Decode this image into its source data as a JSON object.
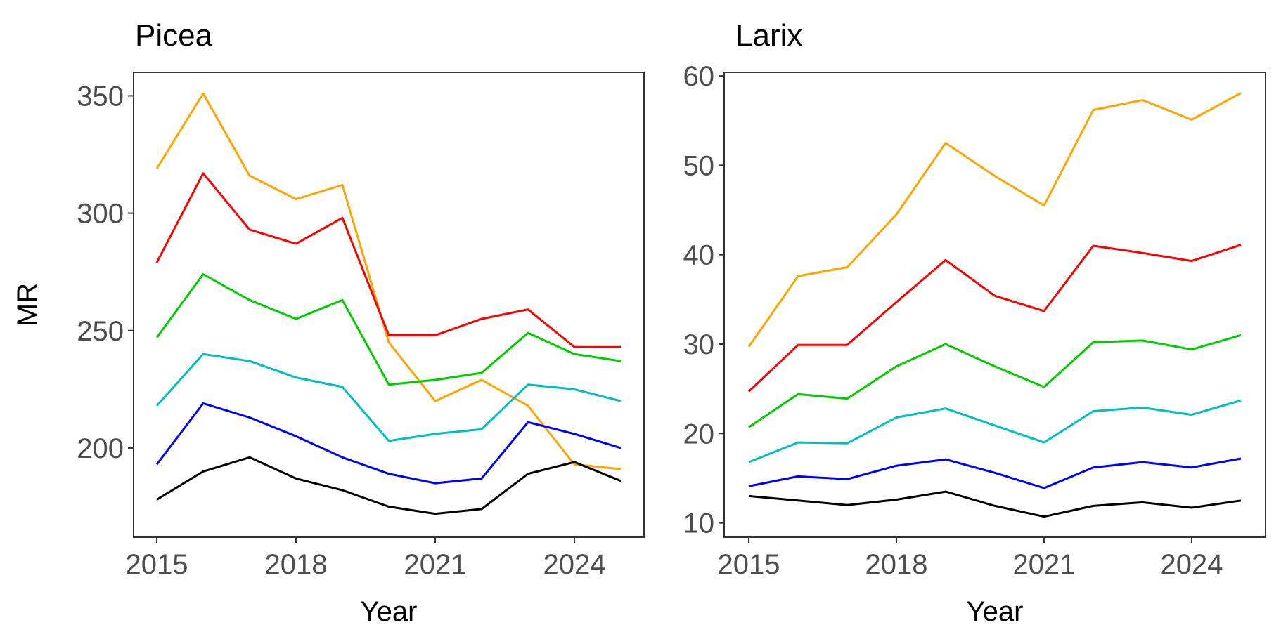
{
  "chart_data": [
    {
      "type": "line",
      "title": "Picea",
      "xlabel": "Year",
      "ylabel": "MR",
      "x": [
        2015,
        2016,
        2017,
        2018,
        2019,
        2020,
        2021,
        2022,
        2023,
        2024,
        2025
      ],
      "xlim": [
        2014.5,
        2025.5
      ],
      "ylim": [
        162,
        360
      ],
      "xticks": [
        2015,
        2018,
        2021,
        2024
      ],
      "yticks": [
        200,
        250,
        300,
        350
      ],
      "grid": false,
      "legend": "none",
      "series": [
        {
          "color": "#FFA500",
          "values": [
            319,
            351,
            316,
            306,
            312,
            245,
            220,
            229,
            218,
            193,
            191
          ]
        },
        {
          "color": "#FF0000",
          "values": [
            279,
            317,
            293,
            287,
            298,
            248,
            248,
            255,
            259,
            243,
            243
          ]
        },
        {
          "color": "#00CD00",
          "values": [
            247,
            274,
            263,
            255,
            263,
            227,
            229,
            232,
            249,
            240,
            237
          ]
        },
        {
          "color": "#00BFC4",
          "values": [
            218,
            240,
            237,
            230,
            226,
            203,
            206,
            208,
            227,
            225,
            220
          ]
        },
        {
          "color": "#0000FF",
          "values": [
            193,
            219,
            213,
            205,
            196,
            189,
            185,
            187,
            211,
            206,
            200
          ]
        },
        {
          "color": "#000000",
          "values": [
            178,
            190,
            196,
            187,
            182,
            175,
            172,
            174,
            189,
            194,
            186
          ]
        }
      ]
    },
    {
      "type": "line",
      "title": "Larix",
      "xlabel": "Year",
      "ylabel": "",
      "x": [
        2015,
        2016,
        2017,
        2018,
        2019,
        2020,
        2021,
        2022,
        2023,
        2024,
        2025
      ],
      "xlim": [
        2014.5,
        2025.5
      ],
      "ylim": [
        8.4,
        60.4
      ],
      "xticks": [
        2015,
        2018,
        2021,
        2024
      ],
      "yticks": [
        10,
        20,
        30,
        40,
        50,
        60
      ],
      "grid": false,
      "legend": "none",
      "series": [
        {
          "color": "#FFA500",
          "values": [
            29.7,
            37.6,
            38.6,
            44.5,
            52.5,
            48.8,
            45.5,
            56.2,
            57.3,
            55.1,
            58.1
          ]
        },
        {
          "color": "#FF0000",
          "values": [
            24.7,
            29.9,
            29.9,
            34.7,
            39.4,
            35.4,
            33.7,
            41.0,
            40.2,
            39.3,
            41.1
          ]
        },
        {
          "color": "#00CD00",
          "values": [
            20.7,
            24.4,
            23.9,
            27.5,
            30.0,
            27.5,
            25.2,
            30.2,
            30.4,
            29.4,
            31.0
          ]
        },
        {
          "color": "#00BFC4",
          "values": [
            16.8,
            19.0,
            18.9,
            21.8,
            22.8,
            20.9,
            19.0,
            22.5,
            22.9,
            22.1,
            23.7
          ]
        },
        {
          "color": "#0000FF",
          "values": [
            14.1,
            15.2,
            14.9,
            16.4,
            17.1,
            15.6,
            13.9,
            16.2,
            16.8,
            16.2,
            17.2
          ]
        },
        {
          "color": "#000000",
          "values": [
            13.0,
            12.5,
            12.0,
            12.6,
            13.5,
            11.9,
            10.7,
            11.9,
            12.3,
            11.7,
            12.5
          ]
        }
      ]
    }
  ]
}
